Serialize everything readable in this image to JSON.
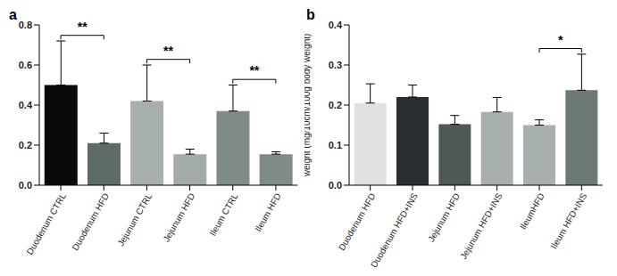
{
  "chart_data": [
    {
      "type": "bar",
      "title": "a",
      "categories": [
        "Duodenum CTRL",
        "Duodenum HFD",
        "Jejunum CTRL",
        "Jejunum HFD",
        "Ileum CTRL",
        "Ileum HFD"
      ],
      "values": [
        0.5,
        0.21,
        0.42,
        0.155,
        0.37,
        0.155
      ],
      "errors": [
        0.22,
        0.05,
        0.18,
        0.025,
        0.13,
        0.012
      ],
      "colors": [
        "#0a0a0a",
        "#5f6b67",
        "#a8b0ad",
        "#a3aba8",
        "#7f8b87",
        "#7f8b87"
      ],
      "ylim": [
        0,
        0.8
      ],
      "yticks": [
        {
          "value": 0,
          "label": "0.0"
        },
        0.2,
        0.4,
        0.6,
        0.8
      ],
      "annotations": [
        {
          "text": "**",
          "categories": [
            "Duodenum CTRL",
            "Duodenum HFD"
          ]
        },
        {
          "text": "**",
          "categories": [
            "Jejunum CTRL",
            "Jejunum HFD"
          ]
        },
        {
          "text": "**",
          "categories": [
            "Ileum CTRL",
            "Ileum HFD"
          ]
        }
      ]
    },
    {
      "type": "bar",
      "title": "b",
      "y_label": "weight (mg/10cm/100g body weight)",
      "categories": [
        "Duodenum HFD",
        "Duodenum HFD+INS",
        "Jejunum HFD",
        "Jejunum HFD+INS",
        "IleumHFD",
        "Ileum HFD+INS"
      ],
      "values": [
        0.205,
        0.22,
        0.152,
        0.183,
        0.15,
        0.237
      ],
      "errors": [
        0.048,
        0.03,
        0.022,
        0.036,
        0.013,
        0.09
      ],
      "colors": [
        "#dfe2e1",
        "#2a2e32",
        "#4e5855",
        "#a8b0ad",
        "#a8b0ad",
        "#6d7975"
      ],
      "ylim": [
        0,
        0.4
      ],
      "yticks": [
        {
          "value": 0,
          "label": "0.0"
        },
        0.1,
        0.2,
        0.3,
        0.4
      ],
      "annotations": [
        {
          "text": "*",
          "categories": [
            "IleumHFD",
            "Ileum HFD+INS"
          ]
        }
      ]
    }
  ]
}
